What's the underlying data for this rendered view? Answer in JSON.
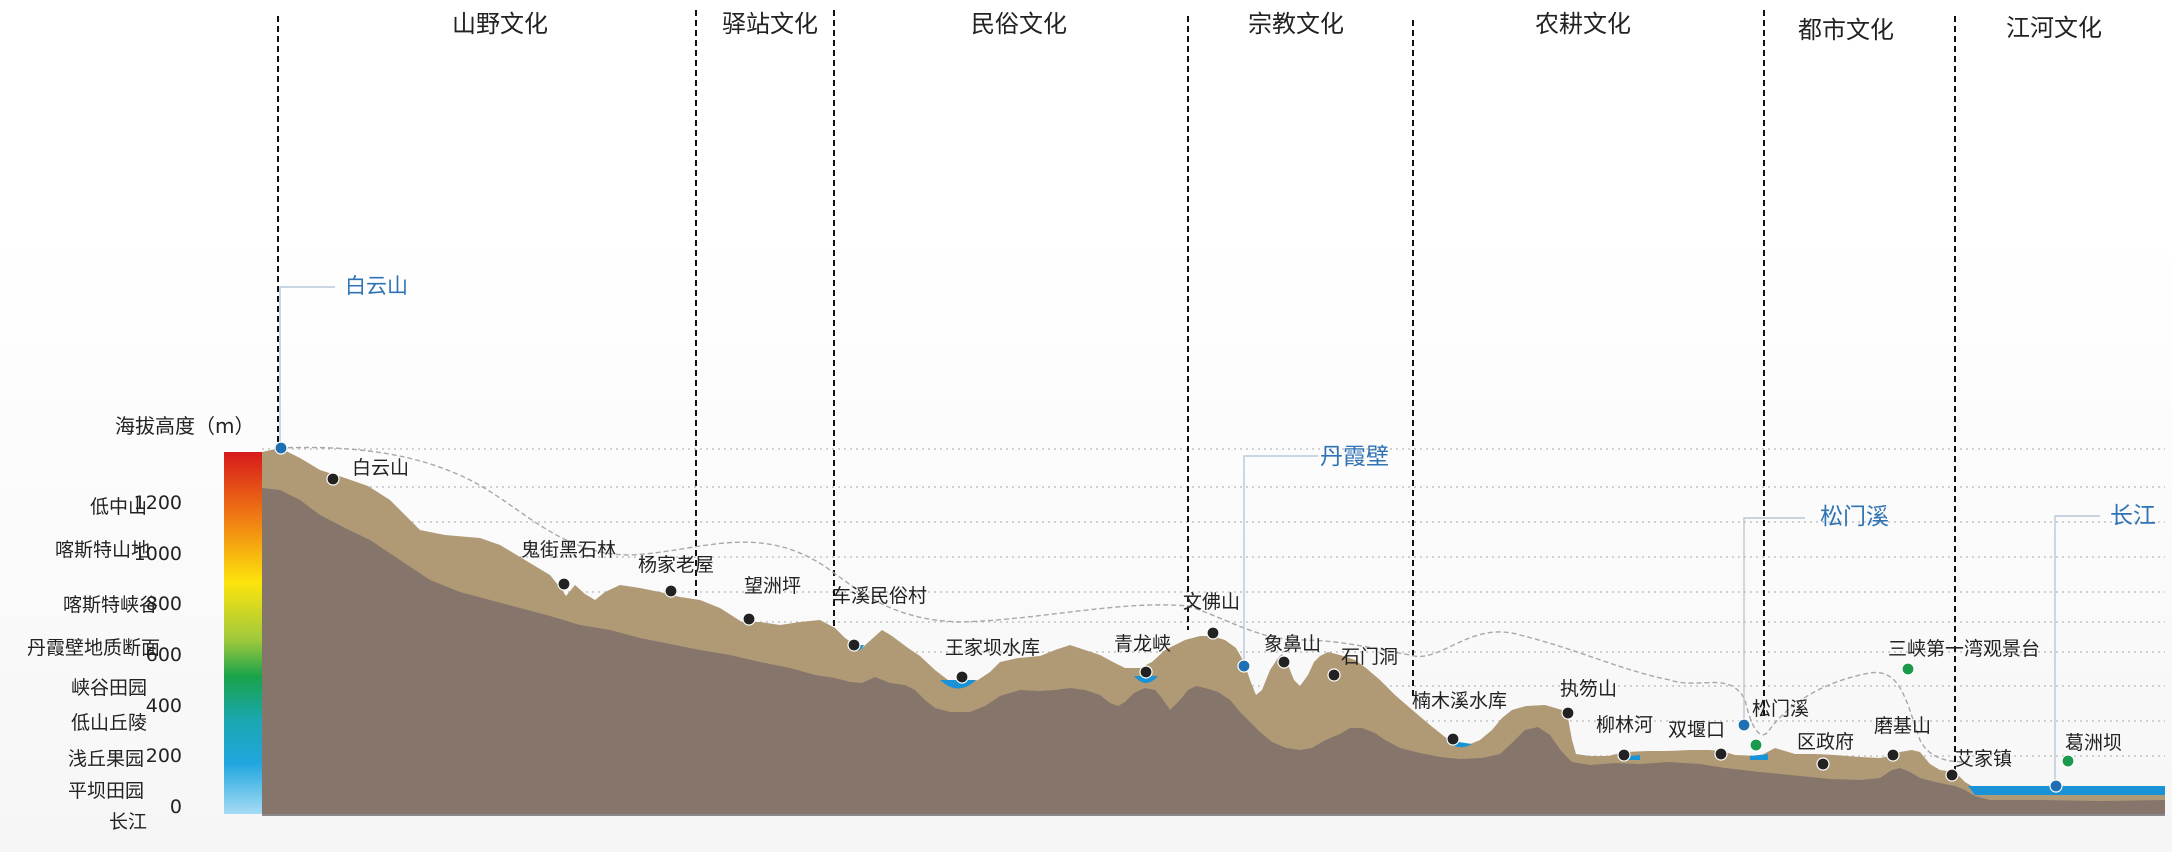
{
  "zones": [
    "山野文化",
    "驿站文化",
    "民俗文化",
    "宗教文化",
    "农耕文化",
    "都市文化",
    "江河文化"
  ],
  "axis": {
    "title": "海拔高度（m）",
    "ticks": [
      "0",
      "200",
      "400",
      "600",
      "800",
      "1000",
      "1200"
    ]
  },
  "terrain_classes": [
    "低中山",
    "喀斯特山地",
    "喀斯特峡谷",
    "丹霞壁地质断面",
    "峡谷田园",
    "低山丘陵",
    "浅丘果园",
    "平坝田园",
    "长江"
  ],
  "places": [
    {
      "name": "白云山",
      "type": "peak"
    },
    {
      "name": "鬼街黑石林",
      "type": "peak"
    },
    {
      "name": "杨家老屋",
      "type": "peak"
    },
    {
      "name": "望洲坪",
      "type": "peak"
    },
    {
      "name": "车溪民俗村",
      "type": "peak"
    },
    {
      "name": "王家坝水库",
      "type": "lake"
    },
    {
      "name": "青龙峡",
      "type": "lake"
    },
    {
      "name": "文佛山",
      "type": "peak"
    },
    {
      "name": "象鼻山",
      "type": "peak"
    },
    {
      "name": "石门洞",
      "type": "peak"
    },
    {
      "name": "楠木溪水库",
      "type": "lake"
    },
    {
      "name": "执笏山",
      "type": "peak"
    },
    {
      "name": "柳林河",
      "type": "peak"
    },
    {
      "name": "双堰口",
      "type": "peak"
    },
    {
      "name": "松门溪",
      "type": "peak"
    },
    {
      "name": "区政府",
      "type": "peak"
    },
    {
      "name": "磨基山",
      "type": "peak"
    },
    {
      "name": "三峡第一湾观景台",
      "type": "viewpoint"
    },
    {
      "name": "艾家镇",
      "type": "peak"
    },
    {
      "name": "葛洲坝",
      "type": "viewpoint"
    }
  ],
  "callouts": [
    "白云山",
    "丹霞壁",
    "松门溪",
    "长江"
  ],
  "colors": {
    "ground_dark": "#85756a",
    "ground_light": "#b09a76",
    "water": "#1a93d6",
    "callout": "#2f73b5",
    "point_dark": "#222222",
    "point_blue": "#1f6fb2",
    "point_green": "#1a9a4a"
  }
}
